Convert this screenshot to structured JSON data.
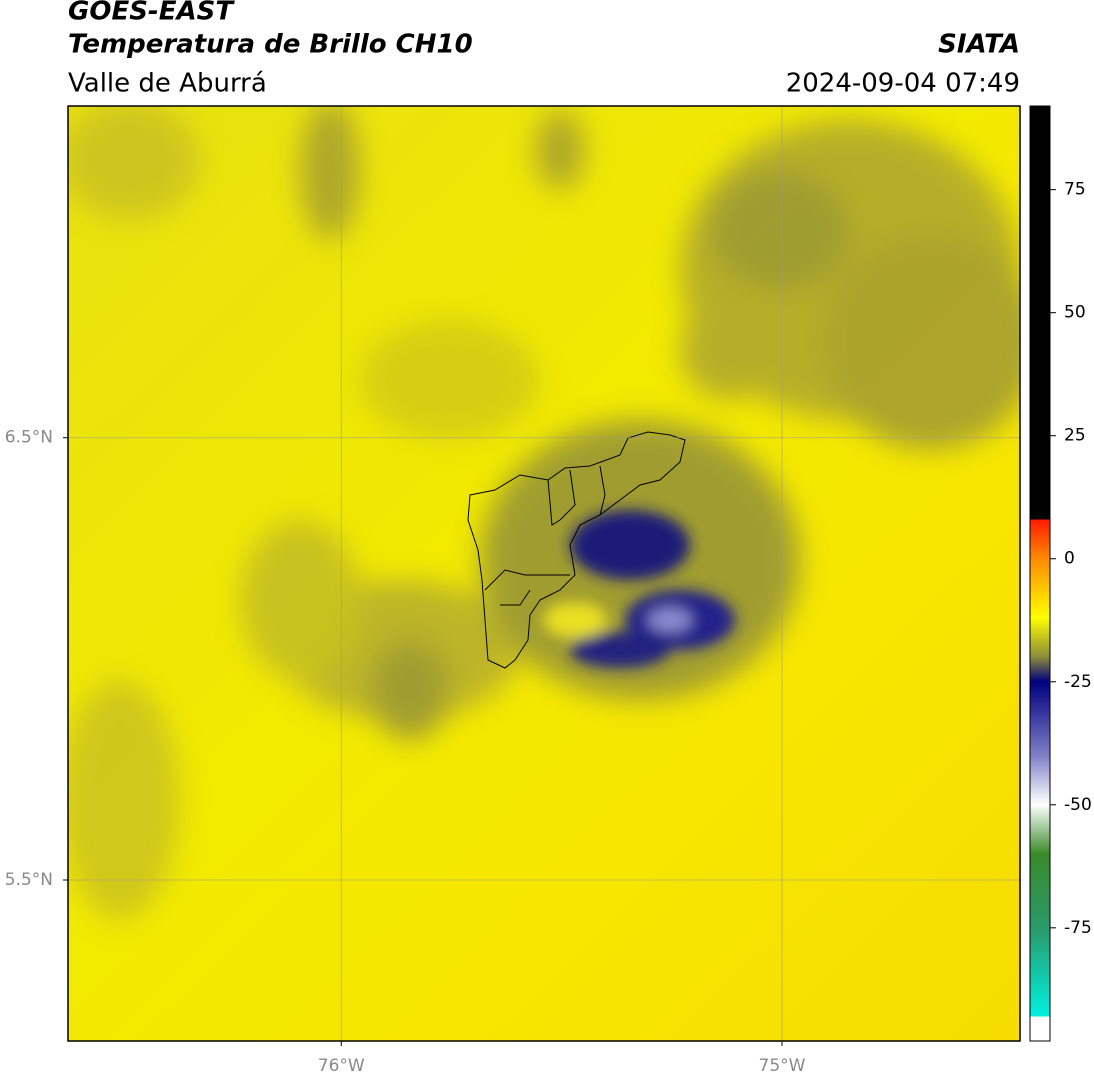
{
  "header": {
    "title": "GOES-EAST",
    "subtitle": "Temperatura de Brillo CH10",
    "region": "Valle de Aburrá",
    "source": "SIATA",
    "datetime": "2024-09-04 07:49"
  },
  "map": {
    "latlim": [
      5.136,
      7.25
    ],
    "lonlim": [
      -76.62,
      -74.46
    ],
    "latticks": [
      {
        "value": 6.5,
        "label": "6.5°N"
      },
      {
        "value": 5.5,
        "label": "5.5°N"
      }
    ],
    "lonticks": [
      {
        "value": -76,
        "label": "76°W"
      },
      {
        "value": -75,
        "label": "75°W"
      }
    ]
  },
  "colorbar": {
    "lim": [
      -98,
      92
    ],
    "ticks": [
      75,
      50,
      25,
      0,
      -25,
      -50,
      -75
    ]
  }
}
